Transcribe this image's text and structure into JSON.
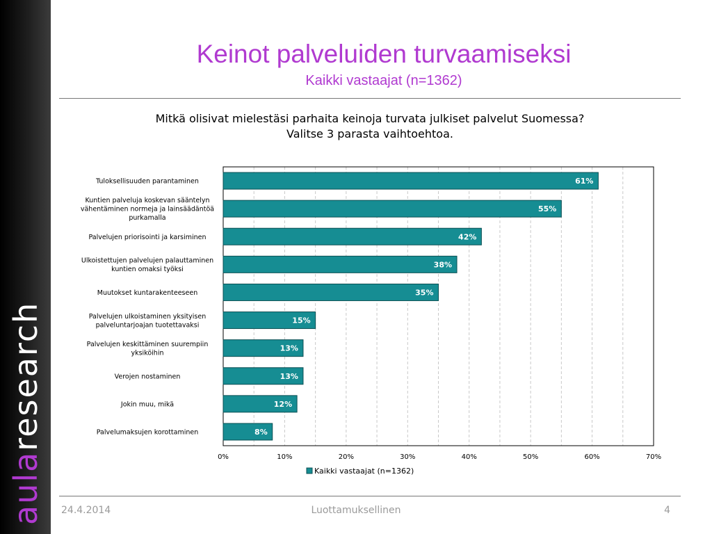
{
  "branding": {
    "logo_part1": "aula",
    "logo_part2": "research"
  },
  "header": {
    "title": "Keinot palveluiden turvaamiseksi",
    "subtitle": "Kaikki vastaajat (n=1362)"
  },
  "question": {
    "line1": "Mitkä olisivat mielestäsi parhaita keinoja turvata julkiset palvelut Suomessa?",
    "line2": "Valitse 3 parasta vaihtoehtoa."
  },
  "chart_data": {
    "type": "bar",
    "orientation": "horizontal",
    "categories": [
      "Tuloksellisuuden parantaminen",
      "Kuntien palveluja koskevan sääntelyn vähentäminen normeja ja lainsäädäntöä purkamalla",
      "Palvelujen priorisointi ja karsiminen",
      "Ulkoistettujen palvelujen palauttaminen kuntien omaksi työksi",
      "Muutokset kuntarakenteeseen",
      "Palvelujen ulkoistaminen yksityisen palveluntarjoajan tuotettavaksi",
      "Palvelujen keskittäminen suurempiin yksiköihin",
      "Verojen nostaminen",
      "Jokin muu, mikä",
      "Palvelumaksujen korottaminen"
    ],
    "category_lines": [
      [
        "Tuloksellisuuden parantaminen"
      ],
      [
        "Kuntien palveluja koskevan sääntelyn",
        "vähentäminen normeja ja lainsäädäntöä",
        "purkamalla"
      ],
      [
        "Palvelujen priorisointi ja karsiminen"
      ],
      [
        "Ulkoistettujen palvelujen palauttaminen",
        "kuntien omaksi työksi"
      ],
      [
        "Muutokset kuntarakenteeseen"
      ],
      [
        "Palvelujen ulkoistaminen yksityisen",
        "palveluntarjoajan tuotettavaksi"
      ],
      [
        "Palvelujen keskittäminen suurempiin",
        "yksiköihin"
      ],
      [
        "Verojen nostaminen"
      ],
      [
        "Jokin muu, mikä"
      ],
      [
        "Palvelumaksujen korottaminen"
      ]
    ],
    "series": [
      {
        "name": "Kaikki vastaajat (n=1362)",
        "values": [
          61,
          55,
          42,
          38,
          35,
          15,
          13,
          13,
          12,
          8
        ],
        "data_labels": [
          "61%",
          "55%",
          "42%",
          "38%",
          "35%",
          "15%",
          "13%",
          "13%",
          "12%",
          "8%"
        ]
      }
    ],
    "xlim": [
      0,
      70
    ],
    "x_ticks": [
      "0%",
      "10%",
      "20%",
      "30%",
      "40%",
      "50%",
      "60%",
      "70%"
    ],
    "grid": "vertical dashed",
    "legend_position": "bottom",
    "bar_color": "#168d93"
  },
  "footer": {
    "date": "24.4.2014",
    "confidentiality": "Luottamuksellinen",
    "page_number": "4"
  }
}
